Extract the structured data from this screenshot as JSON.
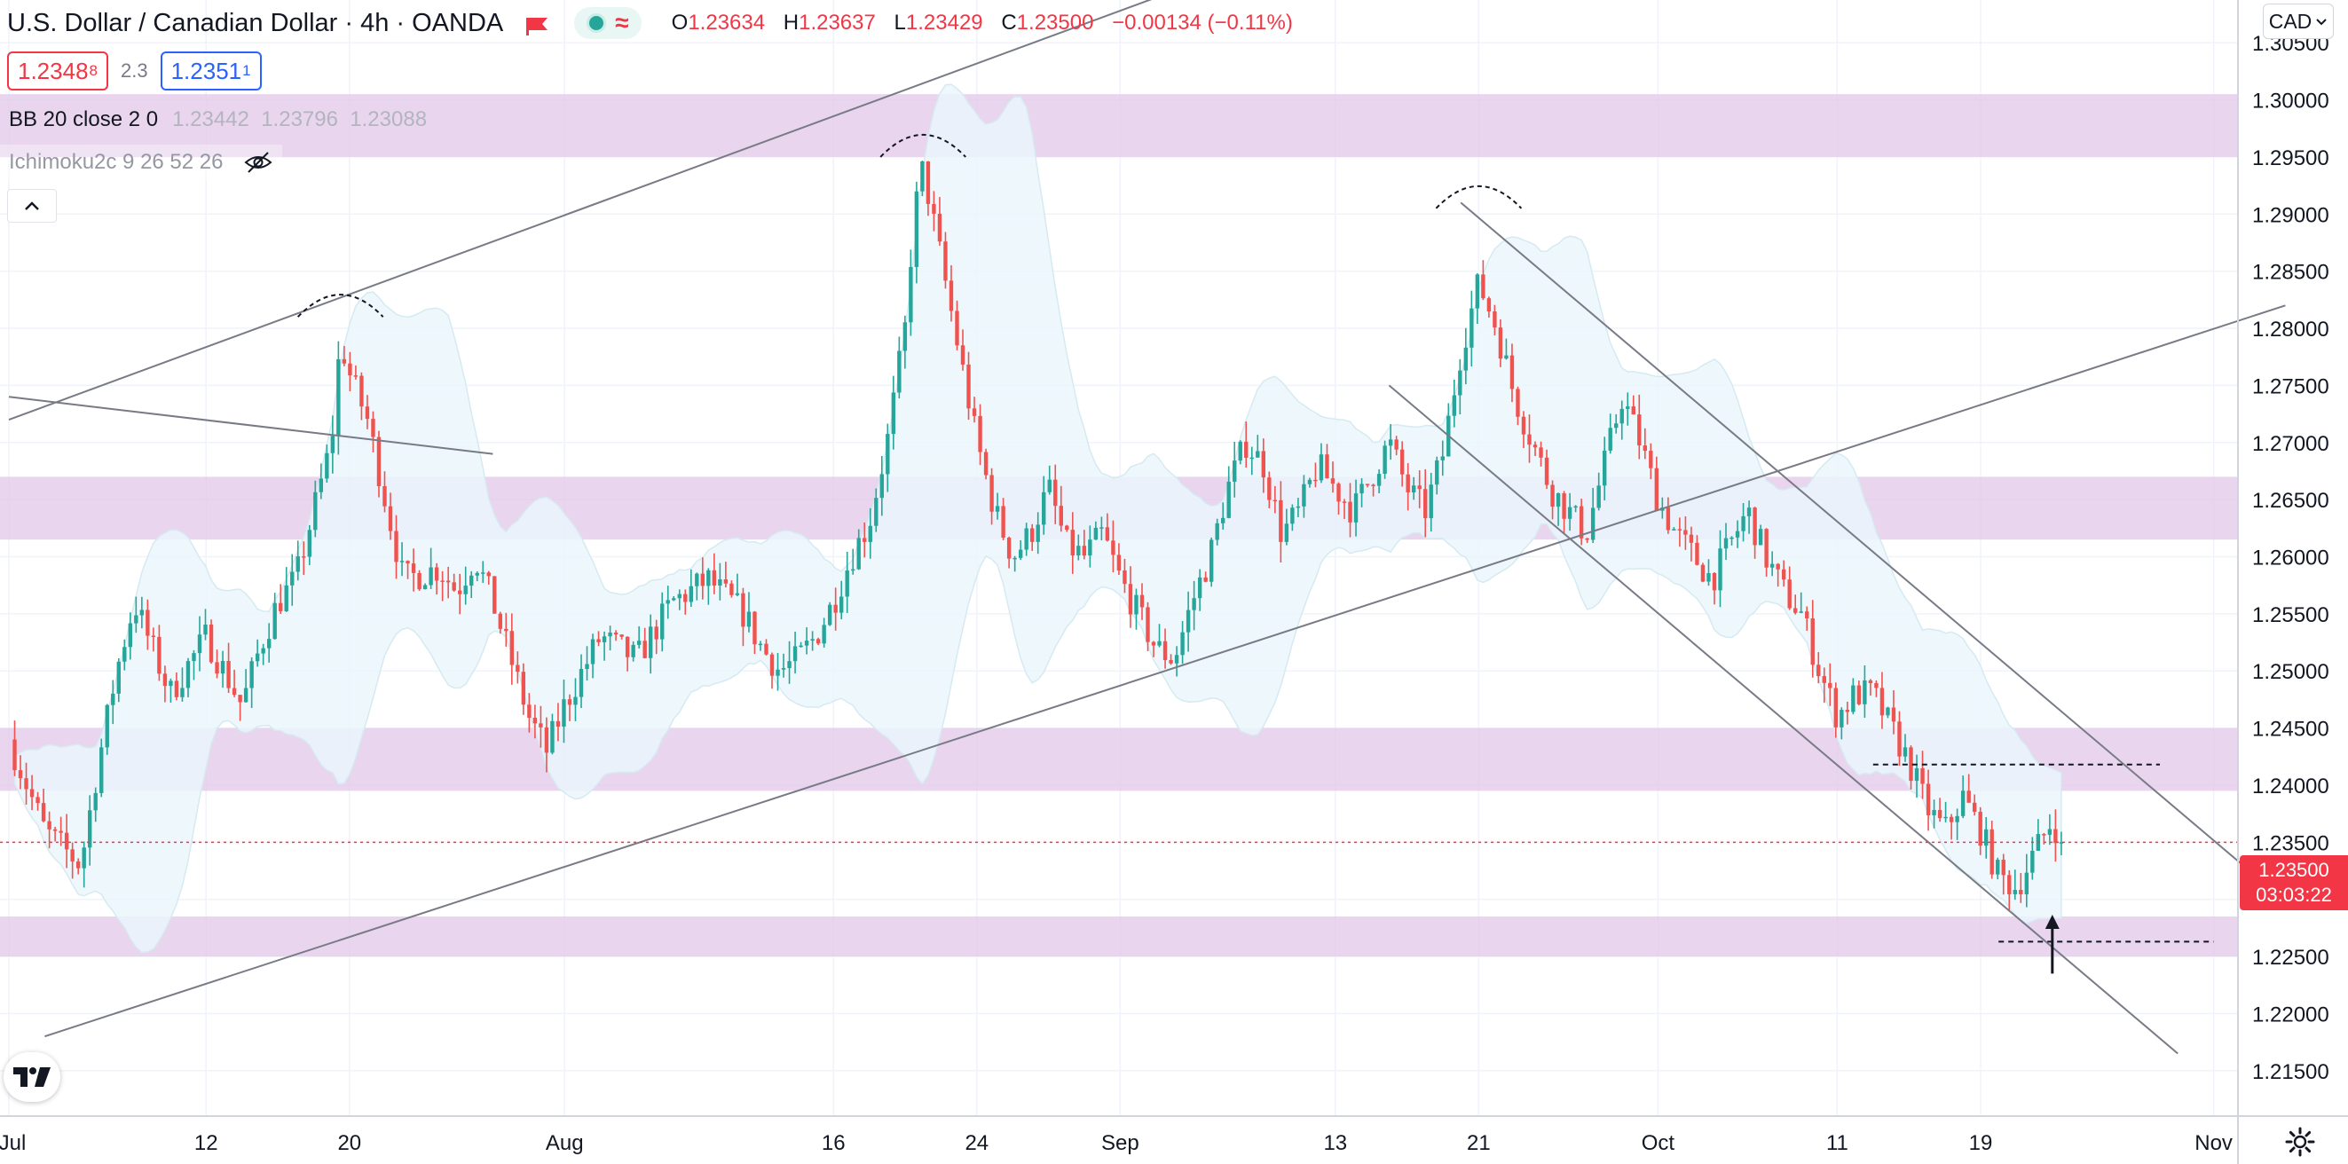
{
  "header": {
    "symbol": "U.S. Dollar / Canadian Dollar · 4h · OANDA",
    "ohlc": [
      {
        "label": "O",
        "value": "1.23634"
      },
      {
        "label": "H",
        "value": "1.23637"
      },
      {
        "label": "L",
        "value": "1.23429"
      },
      {
        "label": "C",
        "value": "1.23500"
      }
    ],
    "change": "−0.00134 (−0.11%)"
  },
  "quote": {
    "sell_main": "1.2348",
    "sell_pip": "8",
    "spread": "2.3",
    "buy_main": "1.2351",
    "buy_pip": "1"
  },
  "indicators": {
    "bb_label": "BB 20 close 2 0",
    "bb_values": "1.23442  1.23796  1.23088",
    "ichimoku_label": "Ichimoku2c 9 26 52 26"
  },
  "currency_button": "CAD",
  "last_price": {
    "price": "1.23500",
    "countdown": "03:03:22"
  },
  "icons": {
    "flag": "flag-icon",
    "status": "market-status-icon",
    "wave": "data-wave-icon",
    "hidden": "eye-off-icon",
    "collapse": "chevron-up-icon",
    "logo": "tradingview-logo-icon",
    "settings": "gear-icon",
    "dropdown": "chevron-down-icon"
  },
  "colors": {
    "up": "#26a69a",
    "down": "#ef5350",
    "zone": "#e1c7e8",
    "bollinger": "#eaf6fb",
    "last_price": "#f23645"
  },
  "chart_data": {
    "type": "candlestick",
    "title": "U.S. Dollar / Canadian Dollar · 4h · OANDA",
    "y_ticks": [
      "1.21500",
      "1.22000",
      "1.22500",
      "1.23000",
      "1.23500",
      "1.24000",
      "1.24500",
      "1.25000",
      "1.25500",
      "1.26000",
      "1.26500",
      "1.27000",
      "1.27500",
      "1.28000",
      "1.28500",
      "1.29000",
      "1.29500",
      "1.30000",
      "1.30500"
    ],
    "x_ticks": [
      {
        "label": "Jul",
        "date": "2021-07-01"
      },
      {
        "label": "12",
        "date": "2021-07-12"
      },
      {
        "label": "20",
        "date": "2021-07-20"
      },
      {
        "label": "Aug",
        "date": "2021-08-01"
      },
      {
        "label": "16",
        "date": "2021-08-16"
      },
      {
        "label": "24",
        "date": "2021-08-24"
      },
      {
        "label": "Sep",
        "date": "2021-09-01"
      },
      {
        "label": "13",
        "date": "2021-09-13"
      },
      {
        "label": "21",
        "date": "2021-09-21"
      },
      {
        "label": "Oct",
        "date": "2021-10-01"
      },
      {
        "label": "11",
        "date": "2021-10-11"
      },
      {
        "label": "19",
        "date": "2021-10-19"
      },
      {
        "label": "Nov",
        "date": "2021-11-01"
      }
    ],
    "ylim": [
      1.2125,
      1.3075
    ],
    "price_path": [
      [
        "2021-07-01",
        1.244
      ],
      [
        "2021-07-02",
        1.24
      ],
      [
        "2021-07-03",
        1.236
      ],
      [
        "2021-07-05",
        1.233
      ],
      [
        "2021-07-06",
        1.242
      ],
      [
        "2021-07-07",
        1.25
      ],
      [
        "2021-07-08",
        1.256
      ],
      [
        "2021-07-09",
        1.252
      ],
      [
        "2021-07-10",
        1.248
      ],
      [
        "2021-07-12",
        1.253
      ],
      [
        "2021-07-13",
        1.25
      ],
      [
        "2021-07-14",
        1.247
      ],
      [
        "2021-07-15",
        1.252
      ],
      [
        "2021-07-16",
        1.256
      ],
      [
        "2021-07-17",
        1.258
      ],
      [
        "2021-07-18",
        1.264
      ],
      [
        "2021-07-19",
        1.27
      ],
      [
        "2021-07-19T12",
        1.279
      ],
      [
        "2021-07-20",
        1.276
      ],
      [
        "2021-07-21",
        1.272
      ],
      [
        "2021-07-22",
        1.265
      ],
      [
        "2021-07-23",
        1.258
      ],
      [
        "2021-07-25",
        1.259
      ],
      [
        "2021-07-26",
        1.257
      ],
      [
        "2021-07-27",
        1.26
      ],
      [
        "2021-07-28",
        1.256
      ],
      [
        "2021-07-29",
        1.251
      ],
      [
        "2021-07-30",
        1.246
      ],
      [
        "2021-07-31",
        1.243
      ],
      [
        "2021-08-01",
        1.247
      ],
      [
        "2021-08-03",
        1.253
      ],
      [
        "2021-08-05",
        1.251
      ],
      [
        "2021-08-07",
        1.256
      ],
      [
        "2021-08-09",
        1.258
      ],
      [
        "2021-08-11",
        1.255
      ],
      [
        "2021-08-12",
        1.252
      ],
      [
        "2021-08-13",
        1.25
      ],
      [
        "2021-08-14",
        1.251
      ],
      [
        "2021-08-15",
        1.253
      ],
      [
        "2021-08-16",
        1.256
      ],
      [
        "2021-08-17",
        1.26
      ],
      [
        "2021-08-18",
        1.263
      ],
      [
        "2021-08-19",
        1.27
      ],
      [
        "2021-08-20",
        1.28
      ],
      [
        "2021-08-20T12",
        1.29
      ],
      [
        "2021-08-21",
        1.294
      ],
      [
        "2021-08-22",
        1.286
      ],
      [
        "2021-08-23",
        1.278
      ],
      [
        "2021-08-24",
        1.27
      ],
      [
        "2021-08-25",
        1.264
      ],
      [
        "2021-08-26",
        1.26
      ],
      [
        "2021-08-27",
        1.262
      ],
      [
        "2021-08-28",
        1.266
      ],
      [
        "2021-08-29",
        1.261
      ],
      [
        "2021-08-30",
        1.26
      ],
      [
        "2021-08-31",
        1.262
      ],
      [
        "2021-09-01",
        1.258
      ],
      [
        "2021-09-02",
        1.255
      ],
      [
        "2021-09-03",
        1.252
      ],
      [
        "2021-09-04",
        1.251
      ],
      [
        "2021-09-05",
        1.256
      ],
      [
        "2021-09-06",
        1.26
      ],
      [
        "2021-09-07",
        1.266
      ],
      [
        "2021-09-08",
        1.27
      ],
      [
        "2021-09-09",
        1.268
      ],
      [
        "2021-09-10",
        1.262
      ],
      [
        "2021-09-11",
        1.264
      ],
      [
        "2021-09-12",
        1.268
      ],
      [
        "2021-09-13",
        1.266
      ],
      [
        "2021-09-14",
        1.264
      ],
      [
        "2021-09-15",
        1.267
      ],
      [
        "2021-09-16",
        1.27
      ],
      [
        "2021-09-17",
        1.266
      ],
      [
        "2021-09-18",
        1.264
      ],
      [
        "2021-09-19",
        1.269
      ],
      [
        "2021-09-20",
        1.278
      ],
      [
        "2021-09-21",
        1.284
      ],
      [
        "2021-09-22",
        1.28
      ],
      [
        "2021-09-23",
        1.274
      ],
      [
        "2021-09-24",
        1.27
      ],
      [
        "2021-09-25",
        1.266
      ],
      [
        "2021-09-26",
        1.264
      ],
      [
        "2021-09-27",
        1.262
      ],
      [
        "2021-09-28",
        1.268
      ],
      [
        "2021-09-29",
        1.274
      ],
      [
        "2021-09-30",
        1.27
      ],
      [
        "2021-10-01",
        1.265
      ],
      [
        "2021-10-02",
        1.262
      ],
      [
        "2021-10-03",
        1.26
      ],
      [
        "2021-10-04",
        1.258
      ],
      [
        "2021-10-05",
        1.261
      ],
      [
        "2021-10-06",
        1.264
      ],
      [
        "2021-10-07",
        1.26
      ],
      [
        "2021-10-08",
        1.257
      ],
      [
        "2021-10-09",
        1.255
      ],
      [
        "2021-10-10",
        1.25
      ],
      [
        "2021-10-11",
        1.246
      ],
      [
        "2021-10-12",
        1.248
      ],
      [
        "2021-10-13",
        1.248
      ],
      [
        "2021-10-14",
        1.245
      ],
      [
        "2021-10-15",
        1.242
      ],
      [
        "2021-10-16",
        1.238
      ],
      [
        "2021-10-17",
        1.236
      ],
      [
        "2021-10-18",
        1.239
      ],
      [
        "2021-10-19",
        1.236
      ],
      [
        "2021-10-20",
        1.232
      ],
      [
        "2021-10-21",
        1.231
      ],
      [
        "2021-10-22",
        1.234
      ],
      [
        "2021-10-23",
        1.237
      ],
      [
        "2021-10-23T12",
        1.235
      ]
    ],
    "peak_markers": [
      {
        "date": "2021-07-19T12",
        "price": 1.281
      },
      {
        "date": "2021-08-21",
        "price": 1.295
      },
      {
        "date": "2021-09-21",
        "price": 1.2905
      }
    ],
    "zones": [
      {
        "from": 1.295,
        "to": 1.3005
      },
      {
        "from": 1.2615,
        "to": 1.267
      },
      {
        "from": 1.2395,
        "to": 1.245
      },
      {
        "from": 1.225,
        "to": 1.2285
      }
    ],
    "trendlines": [
      {
        "from": [
          "2021-07-01",
          1.272
        ],
        "to": [
          "2021-09-10",
          1.313
        ]
      },
      {
        "from": [
          "2021-07-01",
          1.274
        ],
        "to": [
          "2021-07-28",
          1.269
        ]
      },
      {
        "from": [
          "2021-07-03",
          1.218
        ],
        "to": [
          "2021-11-05",
          1.282
        ]
      },
      {
        "from": [
          "2021-09-20",
          1.291
        ],
        "to": [
          "2021-11-03",
          1.2325
        ]
      },
      {
        "from": [
          "2021-09-16",
          1.275
        ],
        "to": [
          "2021-10-30",
          1.2165
        ]
      }
    ],
    "dashed_levels": [
      {
        "price": 1.2418,
        "from": "2021-10-13",
        "to": "2021-10-29"
      },
      {
        "price": 1.2263,
        "from": "2021-10-20",
        "to": "2021-11-01"
      }
    ],
    "arrow": {
      "date": "2021-10-23",
      "from": 1.2235,
      "to": 1.2285
    },
    "last_price": 1.235
  }
}
